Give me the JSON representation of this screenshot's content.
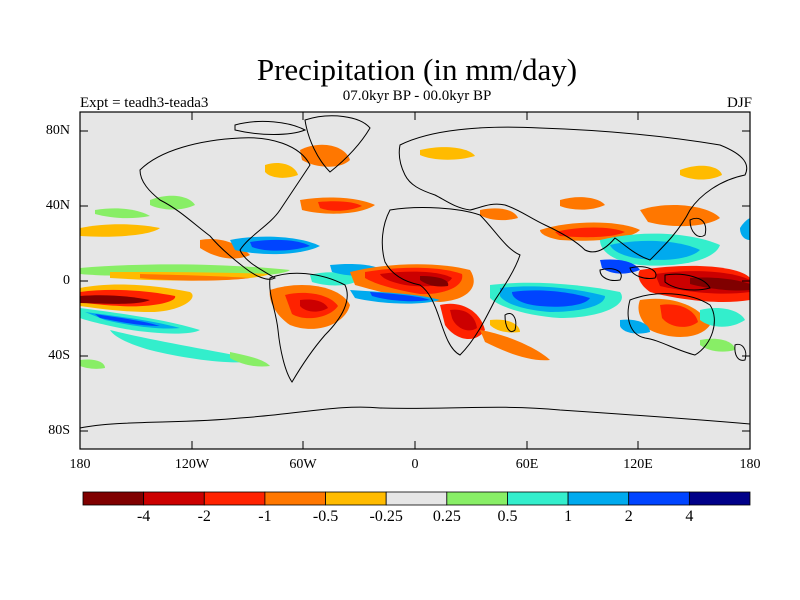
{
  "title": "Precipitation (in mm/day)",
  "subtitle": "07.0kyr BP - 00.0kyr BP",
  "left_label": "Expt = teadh3-teada3",
  "right_label": "DJF",
  "lat_labels": [
    "80N",
    "40N",
    "0",
    "40S",
    "80S"
  ],
  "lon_labels": [
    "180",
    "120W",
    "60W",
    "0",
    "60E",
    "120E",
    "180"
  ],
  "colorbar": {
    "labels": [
      "-4",
      "-2",
      "-1",
      "-0.5",
      "-0.25",
      "0.25",
      "0.5",
      "1",
      "2",
      "4"
    ],
    "colors": [
      "#800000",
      "#cc0000",
      "#ff2200",
      "#ff7700",
      "#ffbb00",
      "#e6e6e6",
      "#88ee66",
      "#33eecc",
      "#00aaee",
      "#0044ff",
      "#000088"
    ]
  },
  "colors": {
    "land_and_background": "#e6e6e6",
    "coastline": "#000000"
  }
}
